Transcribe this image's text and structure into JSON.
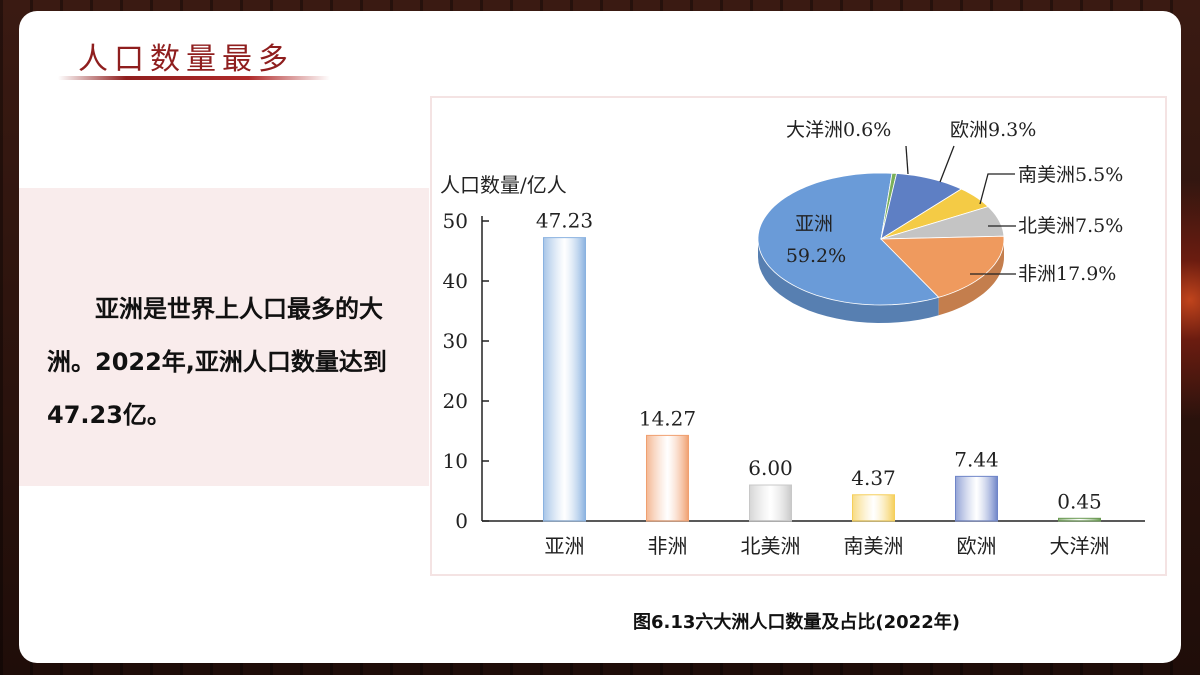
{
  "slide": {
    "title": "人口数量最多",
    "body_text": "亚洲是世界上人口最多的大洲。2022年,亚洲人口数量达到47.23亿。",
    "caption": "图6.13六大洲人口数量及占比(2022年)"
  },
  "colors": {
    "title": "#8f1e1e",
    "panel": "#f9ecec"
  },
  "chart_data": [
    {
      "type": "bar",
      "ylabel": "人口数量/亿人",
      "categories": [
        "亚洲",
        "非洲",
        "北美洲",
        "南美洲",
        "欧洲",
        "大洋洲"
      ],
      "values": [
        47.23,
        14.27,
        6.0,
        4.37,
        7.44,
        0.45
      ],
      "value_labels": [
        "47.23",
        "14.27",
        "6.00",
        "4.37",
        "7.44",
        "0.45"
      ],
      "ylim": [
        0,
        50
      ],
      "yticks": [
        0,
        10,
        20,
        30,
        40,
        50
      ],
      "colors": [
        "#8ab2e0",
        "#f0a070",
        "#c8c8c8",
        "#f5cf5a",
        "#6f85c8",
        "#6a9a52"
      ],
      "grid": false
    },
    {
      "type": "pie",
      "style": "3d",
      "slices": [
        {
          "name": "亚洲",
          "value": 59.2,
          "label": "亚洲",
          "percent_label": "59.2%",
          "color": "#6a9bd8"
        },
        {
          "name": "大洋洲",
          "value": 0.6,
          "label": "大洋洲0.6%",
          "color": "#7ab05a"
        },
        {
          "name": "欧洲",
          "value": 9.3,
          "label": "欧洲9.3%",
          "color": "#5e7fc4"
        },
        {
          "name": "南美洲",
          "value": 5.5,
          "label": "南美洲5.5%",
          "color": "#f4cb45"
        },
        {
          "name": "北美洲",
          "value": 7.5,
          "label": "北美洲7.5%",
          "color": "#c4c4c4"
        },
        {
          "name": "非洲",
          "value": 17.9,
          "label": "非洲17.9%",
          "color": "#ef9a5e"
        }
      ]
    }
  ]
}
